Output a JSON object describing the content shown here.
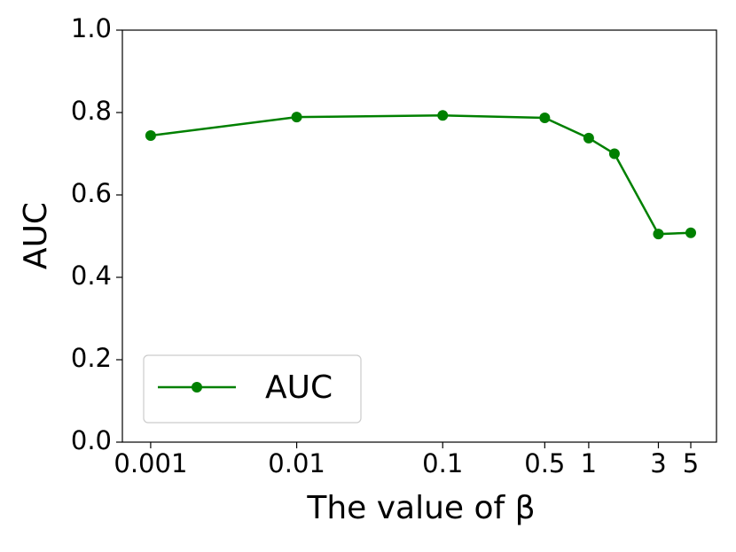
{
  "chart_data": {
    "type": "line",
    "x": [
      0.001,
      0.01,
      0.1,
      0.5,
      1,
      1.5,
      3,
      5
    ],
    "series": [
      {
        "name": "AUC",
        "color": "#008000",
        "values": [
          0.744,
          0.789,
          0.793,
          0.787,
          0.738,
          0.7,
          0.505,
          0.508
        ]
      }
    ],
    "xlabel": "The value of β",
    "ylabel": "AUC",
    "xscale": "log",
    "xlim": [
      0.00064,
      7.5
    ],
    "xticks": [
      0.001,
      0.01,
      0.1,
      0.5,
      1,
      3,
      5
    ],
    "ylim": [
      0,
      1
    ],
    "yticks": [
      {
        "value": 0,
        "label": "0.0"
      },
      {
        "value": 0.2,
        "label": "0.2"
      },
      {
        "value": 0.4,
        "label": "0.4"
      },
      {
        "value": 0.6,
        "label": "0.6"
      },
      {
        "value": 0.8,
        "label": "0.8"
      },
      {
        "value": 1,
        "label": "1.0"
      }
    ],
    "legend": "lower left",
    "grid": false
  }
}
